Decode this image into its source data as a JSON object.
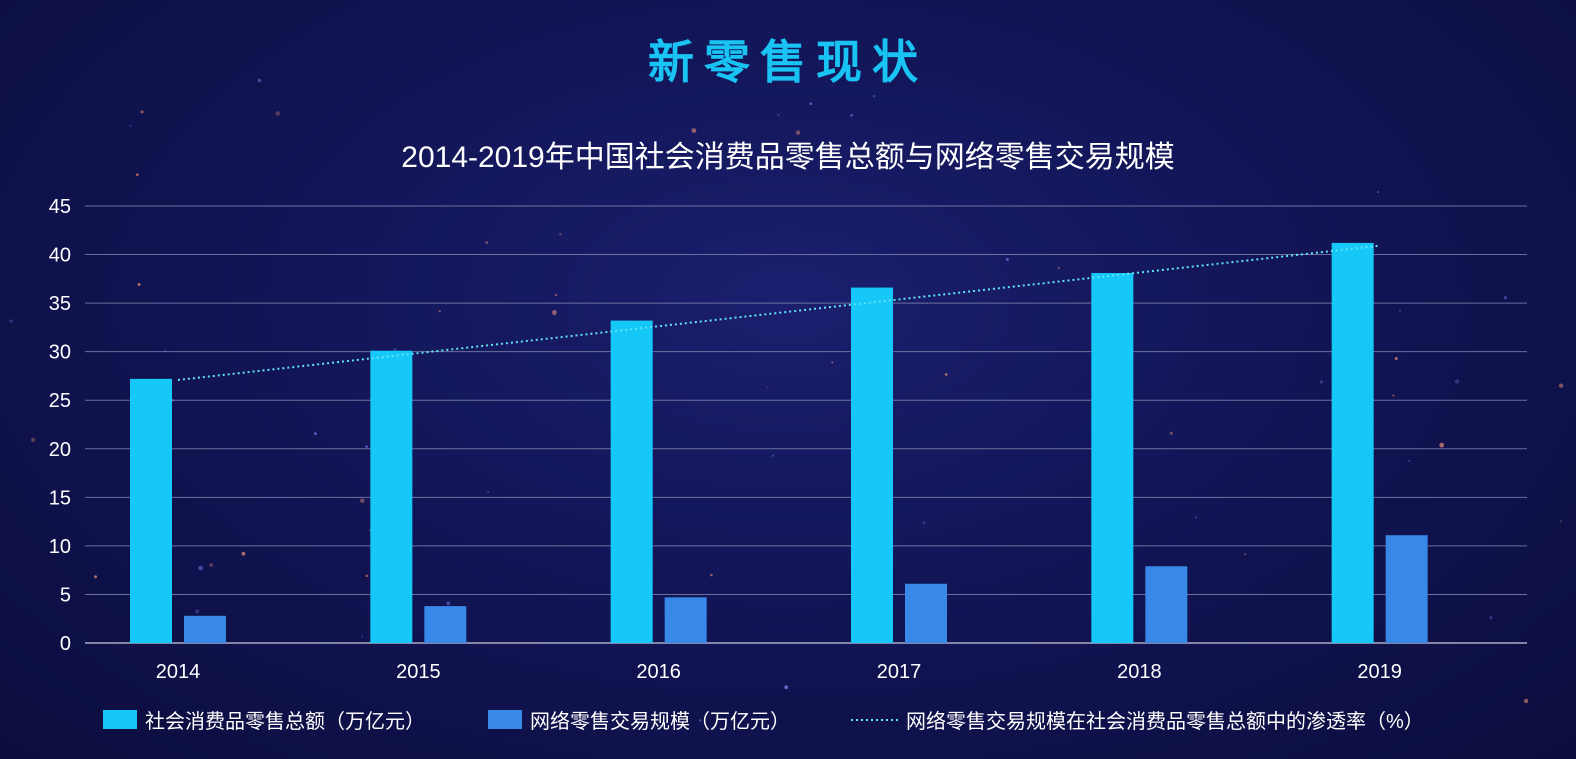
{
  "page": {
    "headline": "新零售现状"
  },
  "colors": {
    "bar_retail": "#16c8f8",
    "bar_online": "#3888e8",
    "trend": "#5fe3f5",
    "grid": "#8a8fb8",
    "text": "#ffffff"
  },
  "chart_data": {
    "type": "bar",
    "title": "2014-2019年中国社会消费品零售总额与网络零售交易规模",
    "categories": [
      "2014",
      "2015",
      "2016",
      "2017",
      "2018",
      "2019"
    ],
    "ylim": [
      0,
      45
    ],
    "yticks": [
      "0",
      "5",
      "10",
      "15",
      "20",
      "25",
      "30",
      "35",
      "40",
      "45"
    ],
    "grid": true,
    "legend_position": "bottom",
    "series": [
      {
        "name": "社会消费品零售总额（万亿元）",
        "type": "bar",
        "values": [
          27.2,
          30.1,
          33.2,
          36.6,
          38.1,
          41.2
        ]
      },
      {
        "name": "网络零售交易规模（万亿元）",
        "type": "bar",
        "values": [
          2.8,
          3.8,
          4.7,
          6.1,
          7.9,
          11.1
        ]
      },
      {
        "name": "网络零售交易规模在社会消费品零售总额中的渗透率（%）",
        "type": "trendline",
        "style": "dotted",
        "values": [
          27.5,
          29.7,
          32.4,
          35.0,
          38.1,
          41.3
        ]
      }
    ]
  }
}
